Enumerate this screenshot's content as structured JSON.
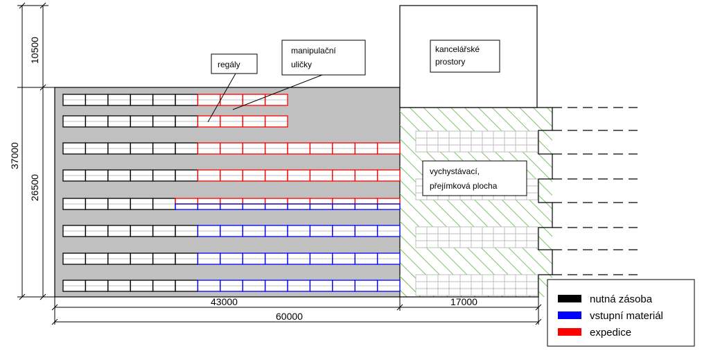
{
  "labels": {
    "regaly": "regály",
    "aisles_line1": "manipulační",
    "aisles_line2": "uličky",
    "office_line1": "kancelářské",
    "office_line2": "prostory",
    "picking_line1": "vychystávací,",
    "picking_line2": "přejímková plocha"
  },
  "dimensions": {
    "office_height": "10500",
    "total_height": "37000",
    "warehouse_height": "26500",
    "warehouse_width": "43000",
    "picking_width": "17000",
    "total_width": "60000"
  },
  "legend": {
    "items": [
      {
        "label": "nutná zásoba",
        "color": "#000000"
      },
      {
        "label": "vstupní materiál",
        "color": "#0000ff"
      },
      {
        "label": "expedice",
        "color": "#ff0000"
      }
    ]
  },
  "colors": {
    "warehouse_floor": "#c0c0c0",
    "hatch": "#7cc26a",
    "pallet_grid": "#bdbdbd"
  },
  "rack_rows": [
    {
      "cells": [
        "k",
        "k",
        "k",
        "k",
        "k",
        "k",
        "r",
        "r",
        "r",
        "r"
      ]
    },
    {
      "cells": [
        "k",
        "k",
        "k",
        "k",
        "k",
        "k",
        "r",
        "r",
        "r",
        "r"
      ]
    },
    {
      "cells": [
        "k",
        "k",
        "k",
        "k",
        "k",
        "k",
        "r",
        "r",
        "r",
        "r",
        "r",
        "r",
        "r",
        "r",
        "r"
      ]
    },
    {
      "cells": [
        "k",
        "k",
        "k",
        "k",
        "k",
        "k",
        "r",
        "r",
        "r",
        "r",
        "r",
        "r",
        "r",
        "r",
        "r"
      ]
    },
    {
      "cells": [
        "k",
        "k",
        "k",
        "k",
        "k",
        "m",
        "m",
        "m",
        "m",
        "m",
        "m",
        "m",
        "m",
        "m",
        "m"
      ]
    },
    {
      "cells": [
        "k",
        "k",
        "k",
        "k",
        "k",
        "k",
        "b",
        "b",
        "b",
        "b",
        "b",
        "b",
        "b",
        "b",
        "b"
      ]
    },
    {
      "cells": [
        "k",
        "k",
        "k",
        "k",
        "k",
        "k",
        "b",
        "b",
        "b",
        "b",
        "b",
        "b",
        "b",
        "b",
        "b"
      ]
    },
    {
      "cells": [
        "k",
        "k",
        "k",
        "k",
        "k",
        "k",
        "b",
        "b",
        "b",
        "b",
        "b",
        "b",
        "b",
        "b",
        "b"
      ]
    }
  ]
}
